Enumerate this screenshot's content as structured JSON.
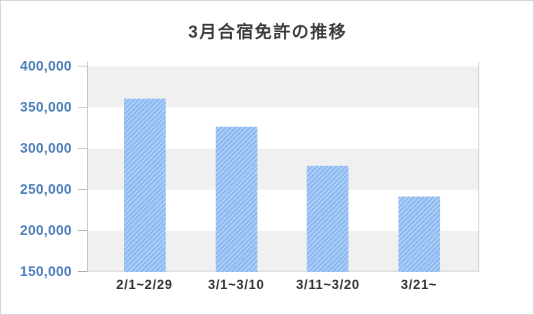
{
  "title": "3月合宿免許の推移",
  "chart_data": {
    "type": "bar",
    "title": "3月合宿免許の推移",
    "categories": [
      "2/1~2/29",
      "3/1~3/10",
      "3/11~3/20",
      "3/21~"
    ],
    "values": [
      361000,
      327000,
      279000,
      242000
    ],
    "xlabel": "",
    "ylabel": "",
    "ylim": [
      150000,
      400000
    ],
    "y_tick_step": 50000,
    "y_tick_labels": [
      "400,000",
      "350,000",
      "300,000",
      "250,000",
      "200,000",
      "150,000"
    ],
    "legend": "none",
    "grid": "alternating-horizontal-bands",
    "bar_style": "diagonal-stripes"
  },
  "colors": {
    "bar_stripe_main": "#8cb9f0",
    "bar_stripe_light": "#b4d2f7",
    "band_gray": "#f0f0f0",
    "band_white": "#ffffff",
    "band_bottom_edge": "#e0e0e0",
    "axis_line": "#b5b5b5",
    "tick_mark": "#aaaaaa",
    "y_label_text": "#4b7db9",
    "x_label_text": "#333333",
    "title_text": "#3a3a3a",
    "page_border": "#cccccc",
    "background": "#ffffff"
  }
}
